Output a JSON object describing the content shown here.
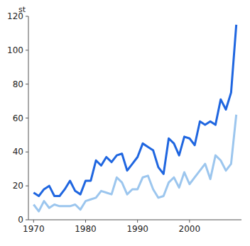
{
  "chart_data": {
    "type": "line",
    "y_label": "st",
    "x": [
      1970,
      1971,
      1972,
      1973,
      1974,
      1975,
      1976,
      1977,
      1978,
      1979,
      1980,
      1981,
      1982,
      1983,
      1984,
      1985,
      1986,
      1987,
      1988,
      1989,
      1990,
      1991,
      1992,
      1993,
      1994,
      1995,
      1996,
      1997,
      1998,
      1999,
      2000,
      2001,
      2002,
      2003,
      2004,
      2005,
      2006,
      2007,
      2008,
      2009
    ],
    "series": [
      {
        "color": "#1f66e0",
        "values": [
          16,
          14,
          18,
          20,
          14,
          14,
          18,
          23,
          17,
          15,
          23,
          23,
          35,
          32,
          37,
          34,
          38,
          39,
          29,
          33,
          37,
          45,
          43,
          41,
          31,
          27,
          48,
          45,
          38,
          49,
          48,
          44,
          58,
          56,
          58,
          56,
          71,
          65,
          75,
          115
        ]
      },
      {
        "color": "#9cc6ee",
        "values": [
          9,
          5,
          11,
          7,
          9,
          8,
          8,
          8,
          9,
          6,
          11,
          12,
          13,
          17,
          16,
          15,
          25,
          22,
          15,
          18,
          18,
          25,
          26,
          18,
          13,
          14,
          22,
          25,
          19,
          28,
          21,
          25,
          29,
          33,
          24,
          38,
          35,
          29,
          33,
          62
        ]
      }
    ],
    "xlim": [
      1969,
      2010
    ],
    "xticks": [
      1970,
      1980,
      1990,
      2000
    ],
    "ylim": [
      0,
      120
    ],
    "yticks": [
      0,
      20,
      40,
      60,
      80,
      100,
      120
    ],
    "grid": false
  }
}
